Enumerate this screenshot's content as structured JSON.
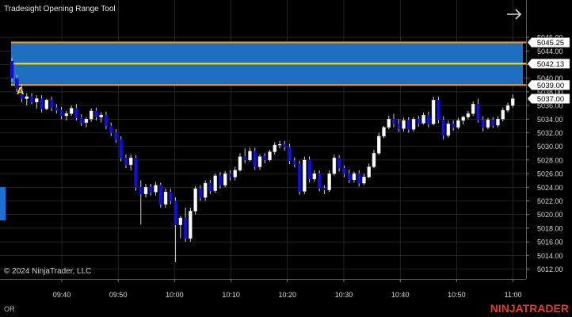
{
  "chart": {
    "title": "Tradesight Opening Range Tool",
    "copyright": "© 2024 NinjaTrader, LLC",
    "footer_label": "OR",
    "brand": "NINJATRADER",
    "marker_letter": "A",
    "colors": {
      "background": "#000000",
      "grid": "#3a3a3a",
      "range_fill": "#1e6fc0",
      "range_border": "#ff9a1e",
      "midline": "#ffe400",
      "bull": "#ffffff",
      "bear": "#1010e6",
      "axis_text": "#d8d8d8",
      "brand": "#e53a2a",
      "marker": "#ffe400",
      "side_tab": "#1f6fd0"
    }
  },
  "price_axis": {
    "ticks": [
      "5046.00",
      "5044.00",
      "5042.00",
      "5040.00",
      "5038.00",
      "5036.00",
      "5034.00",
      "5032.00",
      "5030.00",
      "5028.00",
      "5026.00",
      "5024.00",
      "5022.00",
      "5020.00",
      "5018.00",
      "5016.00",
      "5014.00",
      "5012.00"
    ],
    "range": [
      5011.0,
      5047.0
    ],
    "labels": {
      "or_high": "5045.25",
      "or_mid": "5042.13",
      "or_low": "5039.00",
      "last": "5037.00"
    }
  },
  "time_axis": {
    "ticks": [
      "09:40",
      "09:50",
      "10:00",
      "10:10",
      "10:20",
      "10:30",
      "10:40",
      "10:50",
      "11:00"
    ]
  },
  "chart_data": {
    "type": "candlestick",
    "opening_range": {
      "high": 5045.25,
      "mid": 5042.13,
      "low": 5039.0
    },
    "last_price": 5037.0,
    "candles": [
      [
        5042.5,
        5043.0,
        5039.5,
        5040.0
      ],
      [
        5040.0,
        5040.5,
        5038.0,
        5038.5
      ],
      [
        5038.5,
        5039.0,
        5036.5,
        5037.0
      ],
      [
        5037.0,
        5037.8,
        5036.0,
        5037.3
      ],
      [
        5037.3,
        5037.8,
        5036.2,
        5036.5
      ],
      [
        5036.5,
        5037.5,
        5035.5,
        5037.0
      ],
      [
        5037.0,
        5037.5,
        5035.0,
        5035.5
      ],
      [
        5035.5,
        5037.0,
        5035.3,
        5036.8
      ],
      [
        5036.8,
        5037.3,
        5035.2,
        5035.7
      ],
      [
        5035.7,
        5036.2,
        5034.8,
        5035.3
      ],
      [
        5035.3,
        5035.8,
        5034.0,
        5034.5
      ],
      [
        5034.5,
        5035.2,
        5033.8,
        5034.8
      ],
      [
        5034.8,
        5036.0,
        5034.5,
        5035.6
      ],
      [
        5035.6,
        5036.2,
        5033.8,
        5034.2
      ],
      [
        5034.2,
        5034.7,
        5033.0,
        5033.5
      ],
      [
        5033.5,
        5034.3,
        5032.8,
        5034.0
      ],
      [
        5034.0,
        5035.6,
        5033.6,
        5035.2
      ],
      [
        5035.2,
        5035.7,
        5033.8,
        5034.3
      ],
      [
        5034.3,
        5035.0,
        5033.5,
        5034.6
      ],
      [
        5034.6,
        5035.1,
        5032.5,
        5033.0
      ],
      [
        5033.0,
        5033.5,
        5031.5,
        5032.0
      ],
      [
        5032.0,
        5032.5,
        5030.5,
        5031.0
      ],
      [
        5031.0,
        5031.5,
        5027.8,
        5028.3
      ],
      [
        5028.3,
        5028.8,
        5026.8,
        5027.3
      ],
      [
        5027.3,
        5028.8,
        5026.5,
        5028.3
      ],
      [
        5028.3,
        5028.7,
        5023.5,
        5024.0
      ],
      [
        5024.0,
        5025.0,
        5018.5,
        5023.0
      ],
      [
        5023.0,
        5024.5,
        5022.5,
        5024.0
      ],
      [
        5024.0,
        5024.5,
        5022.8,
        5023.3
      ],
      [
        5023.3,
        5024.8,
        5022.8,
        5024.3
      ],
      [
        5024.3,
        5024.7,
        5021.0,
        5021.5
      ],
      [
        5021.5,
        5023.8,
        5021.0,
        5023.3
      ],
      [
        5023.3,
        5023.8,
        5021.5,
        5022.0
      ],
      [
        5022.0,
        5022.5,
        5013.0,
        5018.5
      ],
      [
        5018.5,
        5019.8,
        5016.5,
        5019.5
      ],
      [
        5019.5,
        5021.0,
        5016.0,
        5016.5
      ],
      [
        5016.5,
        5021.0,
        5016.0,
        5020.5
      ],
      [
        5020.5,
        5024.2,
        5020.0,
        5023.8
      ],
      [
        5023.8,
        5024.3,
        5022.0,
        5022.5
      ],
      [
        5022.5,
        5025.0,
        5022.0,
        5024.6
      ],
      [
        5024.6,
        5025.1,
        5023.0,
        5023.5
      ],
      [
        5023.5,
        5026.0,
        5023.2,
        5025.7
      ],
      [
        5025.7,
        5026.2,
        5023.8,
        5024.3
      ],
      [
        5024.3,
        5026.4,
        5024.0,
        5026.0
      ],
      [
        5026.0,
        5026.5,
        5025.0,
        5025.5
      ],
      [
        5025.5,
        5027.0,
        5025.0,
        5026.5
      ],
      [
        5026.5,
        5029.0,
        5026.3,
        5028.5
      ],
      [
        5028.5,
        5029.7,
        5027.5,
        5028.0
      ],
      [
        5028.0,
        5029.8,
        5027.8,
        5029.3
      ],
      [
        5029.3,
        5029.8,
        5026.6,
        5027.0
      ],
      [
        5027.0,
        5028.8,
        5026.6,
        5028.5
      ],
      [
        5028.5,
        5029.0,
        5027.5,
        5028.0
      ],
      [
        5028.0,
        5029.5,
        5027.8,
        5029.2
      ],
      [
        5029.2,
        5030.6,
        5028.8,
        5030.2
      ],
      [
        5030.2,
        5030.8,
        5029.7,
        5030.3
      ],
      [
        5030.3,
        5030.8,
        5029.4,
        5029.9
      ],
      [
        5029.9,
        5030.4,
        5027.4,
        5027.9
      ],
      [
        5027.9,
        5028.4,
        5026.9,
        5027.4
      ],
      [
        5027.4,
        5027.9,
        5022.9,
        5023.4
      ],
      [
        5023.4,
        5028.5,
        5023.0,
        5028.0
      ],
      [
        5028.0,
        5028.5,
        5024.7,
        5025.2
      ],
      [
        5025.2,
        5026.5,
        5024.8,
        5026.0
      ],
      [
        5026.0,
        5026.5,
        5023.4,
        5023.9
      ],
      [
        5023.9,
        5024.3,
        5023.0,
        5023.6
      ],
      [
        5023.6,
        5026.5,
        5023.3,
        5026.0
      ],
      [
        5026.0,
        5028.8,
        5025.7,
        5028.3
      ],
      [
        5028.3,
        5028.7,
        5026.3,
        5026.8
      ],
      [
        5026.8,
        5027.2,
        5025.5,
        5026.0
      ],
      [
        5026.0,
        5026.6,
        5024.6,
        5025.1
      ],
      [
        5025.1,
        5026.3,
        5024.7,
        5026.0
      ],
      [
        5026.0,
        5026.5,
        5024.1,
        5024.6
      ],
      [
        5024.6,
        5026.0,
        5024.3,
        5025.5
      ],
      [
        5025.5,
        5027.5,
        5025.3,
        5027.0
      ],
      [
        5027.0,
        5029.5,
        5026.8,
        5029.0
      ],
      [
        5029.0,
        5032.0,
        5028.7,
        5031.5
      ],
      [
        5031.5,
        5033.0,
        5031.2,
        5032.8
      ],
      [
        5032.8,
        5034.5,
        5032.5,
        5034.0
      ],
      [
        5034.0,
        5034.8,
        5032.8,
        5033.3
      ],
      [
        5033.3,
        5034.0,
        5032.1,
        5032.6
      ],
      [
        5032.6,
        5034.2,
        5032.2,
        5033.8
      ],
      [
        5033.8,
        5034.3,
        5032.0,
        5032.5
      ],
      [
        5032.5,
        5034.3,
        5032.2,
        5034.0
      ],
      [
        5034.0,
        5034.5,
        5032.9,
        5033.4
      ],
      [
        5033.4,
        5035.0,
        5033.2,
        5034.6
      ],
      [
        5034.6,
        5035.1,
        5032.8,
        5033.3
      ],
      [
        5033.3,
        5037.3,
        5033.1,
        5036.8
      ],
      [
        5036.8,
        5037.3,
        5033.4,
        5033.9
      ],
      [
        5033.9,
        5034.4,
        5031.0,
        5031.6
      ],
      [
        5031.6,
        5033.8,
        5031.3,
        5033.3
      ],
      [
        5033.3,
        5033.8,
        5032.3,
        5032.8
      ],
      [
        5032.8,
        5034.2,
        5032.5,
        5033.8
      ],
      [
        5033.8,
        5034.5,
        5033.2,
        5034.3
      ],
      [
        5034.3,
        5035.2,
        5034.0,
        5034.8
      ],
      [
        5034.8,
        5036.6,
        5034.5,
        5036.2
      ],
      [
        5036.2,
        5037.0,
        5033.5,
        5033.9
      ],
      [
        5033.9,
        5034.4,
        5032.2,
        5032.8
      ],
      [
        5032.8,
        5034.2,
        5032.5,
        5033.9
      ],
      [
        5033.9,
        5034.3,
        5032.7,
        5033.1
      ],
      [
        5033.1,
        5034.4,
        5032.8,
        5034.0
      ],
      [
        5034.0,
        5035.7,
        5033.7,
        5035.3
      ],
      [
        5035.3,
        5036.4,
        5035.0,
        5036.0
      ],
      [
        5036.0,
        5037.6,
        5035.7,
        5037.0
      ]
    ]
  }
}
